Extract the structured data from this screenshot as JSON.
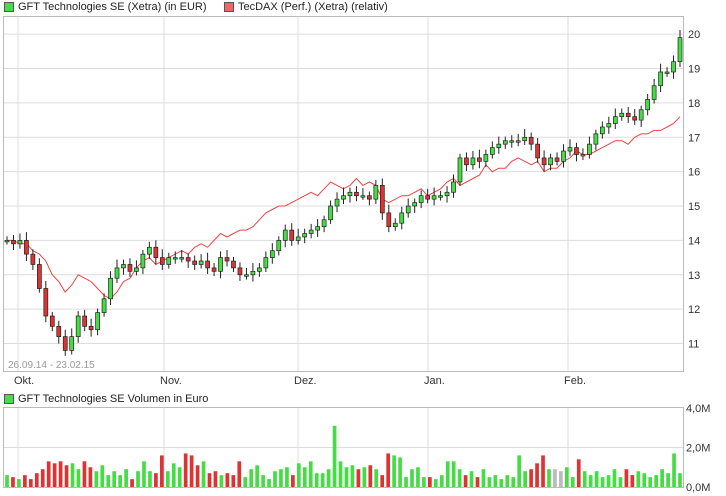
{
  "legend": {
    "main": "GFT Technologies SE (Xetra) (in EUR)",
    "compare": "TecDAX (Perf.) (Xetra) (relativ)",
    "volume": "GFT Technologies SE Volumen in Euro"
  },
  "colors": {
    "up": "#44dd44",
    "down": "#dd3333",
    "compare_line": "#ee4444",
    "grid": "#dddddd",
    "neutral_volume": "#bbbbbb"
  },
  "chart_data": [
    {
      "type": "candlestick",
      "title": "",
      "date_range_label": "26.09.14 - 23.02.15",
      "x_tick_labels": [
        "Okt.",
        "Nov.",
        "Dez.",
        "Jan.",
        "Feb."
      ],
      "y_tick_labels": [
        "11",
        "12",
        "13",
        "14",
        "15",
        "16",
        "17",
        "18",
        "19",
        "20"
      ],
      "ylim": [
        10.2,
        20.5
      ],
      "series": [
        {
          "name": "GFT Technologies SE (Xetra) (in EUR)",
          "close": [
            14.0,
            13.9,
            14.0,
            13.6,
            13.3,
            12.6,
            11.8,
            11.5,
            11.2,
            10.8,
            11.2,
            11.8,
            11.5,
            11.4,
            11.9,
            12.3,
            12.9,
            13.2,
            13.3,
            13.1,
            13.2,
            13.6,
            13.8,
            13.5,
            13.3,
            13.5,
            13.5,
            13.5,
            13.4,
            13.3,
            13.4,
            13.2,
            13.1,
            13.5,
            13.4,
            13.2,
            13.0,
            13.0,
            13.1,
            13.2,
            13.5,
            13.7,
            14.0,
            14.3,
            14.0,
            14.1,
            14.2,
            14.3,
            14.4,
            14.6,
            15.0,
            15.2,
            15.3,
            15.4,
            15.3,
            15.3,
            15.2,
            15.6,
            14.8,
            14.4,
            14.5,
            14.8,
            15.0,
            15.1,
            15.3,
            15.2,
            15.3,
            15.3,
            15.4,
            15.7,
            16.4,
            16.2,
            16.4,
            16.3,
            16.5,
            16.7,
            16.8,
            16.9,
            16.9,
            16.9,
            17.0,
            16.8,
            16.4,
            16.2,
            16.4,
            16.3,
            16.6,
            16.7,
            16.5,
            16.5,
            16.8,
            17.1,
            17.3,
            17.4,
            17.6,
            17.7,
            17.6,
            17.5,
            17.8,
            18.1,
            18.5,
            18.9,
            18.9,
            19.2,
            19.9
          ],
          "note": "closing prices estimated from candle bodies"
        },
        {
          "name": "TecDAX (Perf.) (Xetra) (relativ)",
          "values": [
            14.0,
            14.0,
            13.9,
            13.9,
            13.7,
            13.6,
            13.4,
            13.0,
            12.8,
            12.5,
            12.7,
            13.0,
            12.9,
            12.8,
            12.6,
            12.4,
            12.3,
            12.5,
            12.8,
            12.9,
            13.2,
            13.4,
            13.5,
            13.3,
            13.4,
            13.5,
            13.6,
            13.7,
            13.6,
            13.8,
            13.9,
            13.8,
            14.0,
            14.2,
            14.1,
            14.2,
            14.3,
            14.3,
            14.4,
            14.6,
            14.8,
            14.9,
            15.0,
            15.0,
            15.1,
            15.2,
            15.3,
            15.4,
            15.3,
            15.5,
            15.7,
            15.6,
            15.5,
            15.6,
            15.8,
            15.6,
            15.7,
            15.6,
            15.2,
            15.1,
            15.2,
            15.3,
            15.3,
            15.4,
            15.5,
            15.3,
            15.4,
            15.5,
            15.7,
            15.8,
            15.6,
            15.7,
            15.8,
            15.9,
            16.2,
            16.0,
            16.1,
            16.1,
            16.3,
            16.4,
            16.3,
            16.2,
            16.3,
            16.0,
            16.1,
            16.1,
            16.3,
            16.4,
            16.6,
            16.5,
            16.5,
            16.6,
            16.7,
            16.8,
            16.9,
            16.9,
            16.8,
            17.0,
            17.1,
            17.1,
            17.2,
            17.2,
            17.3,
            17.4,
            17.6
          ]
        }
      ]
    },
    {
      "type": "bar",
      "title": "GFT Technologies SE Volumen in Euro",
      "y_tick_labels": [
        "4,0M",
        "2,0M",
        "0,0M"
      ],
      "ylim": [
        0,
        4.0
      ],
      "unit": "M EUR",
      "values": [
        0.6,
        0.5,
        0.4,
        0.6,
        0.4,
        0.7,
        0.9,
        1.3,
        1.2,
        1.3,
        1.1,
        1.2,
        0.9,
        1.3,
        1.0,
        0.8,
        1.1,
        0.6,
        0.8,
        0.6,
        0.9,
        0.4,
        0.8,
        1.3,
        0.8,
        0.7,
        1.6,
        0.8,
        1.2,
        1.0,
        1.7,
        1.6,
        1.1,
        1.3,
        0.7,
        0.8,
        0.6,
        0.7,
        0.6,
        1.3,
        0.5,
        0.9,
        1.1,
        0.6,
        0.4,
        0.8,
        0.9,
        1.0,
        0.6,
        1.2,
        1.0,
        1.3,
        0.7,
        0.7,
        0.9,
        3.1,
        1.3,
        1.0,
        1.1,
        0.9,
        1.0,
        1.1,
        0.9,
        0.6,
        1.7,
        1.6,
        1.5,
        0.5,
        0.9,
        1.0,
        0.5,
        0.5,
        0.4,
        0.6,
        1.3,
        1.3,
        0.9,
        0.6,
        0.8,
        0.5,
        0.9,
        0.5,
        0.6,
        0.4,
        0.6,
        0.5,
        1.6,
        0.8,
        0.9,
        1.2,
        1.6,
        0.9,
        0.9,
        0.8,
        1.0,
        0.5,
        1.4,
        0.8,
        0.6,
        0.8,
        0.5,
        0.6,
        0.9,
        0.5,
        0.9,
        0.6,
        0.8,
        0.7,
        0.5,
        0.6,
        0.9,
        0.7,
        1.7,
        0.7
      ],
      "neutral_indices": [
        92,
        93
      ]
    }
  ]
}
